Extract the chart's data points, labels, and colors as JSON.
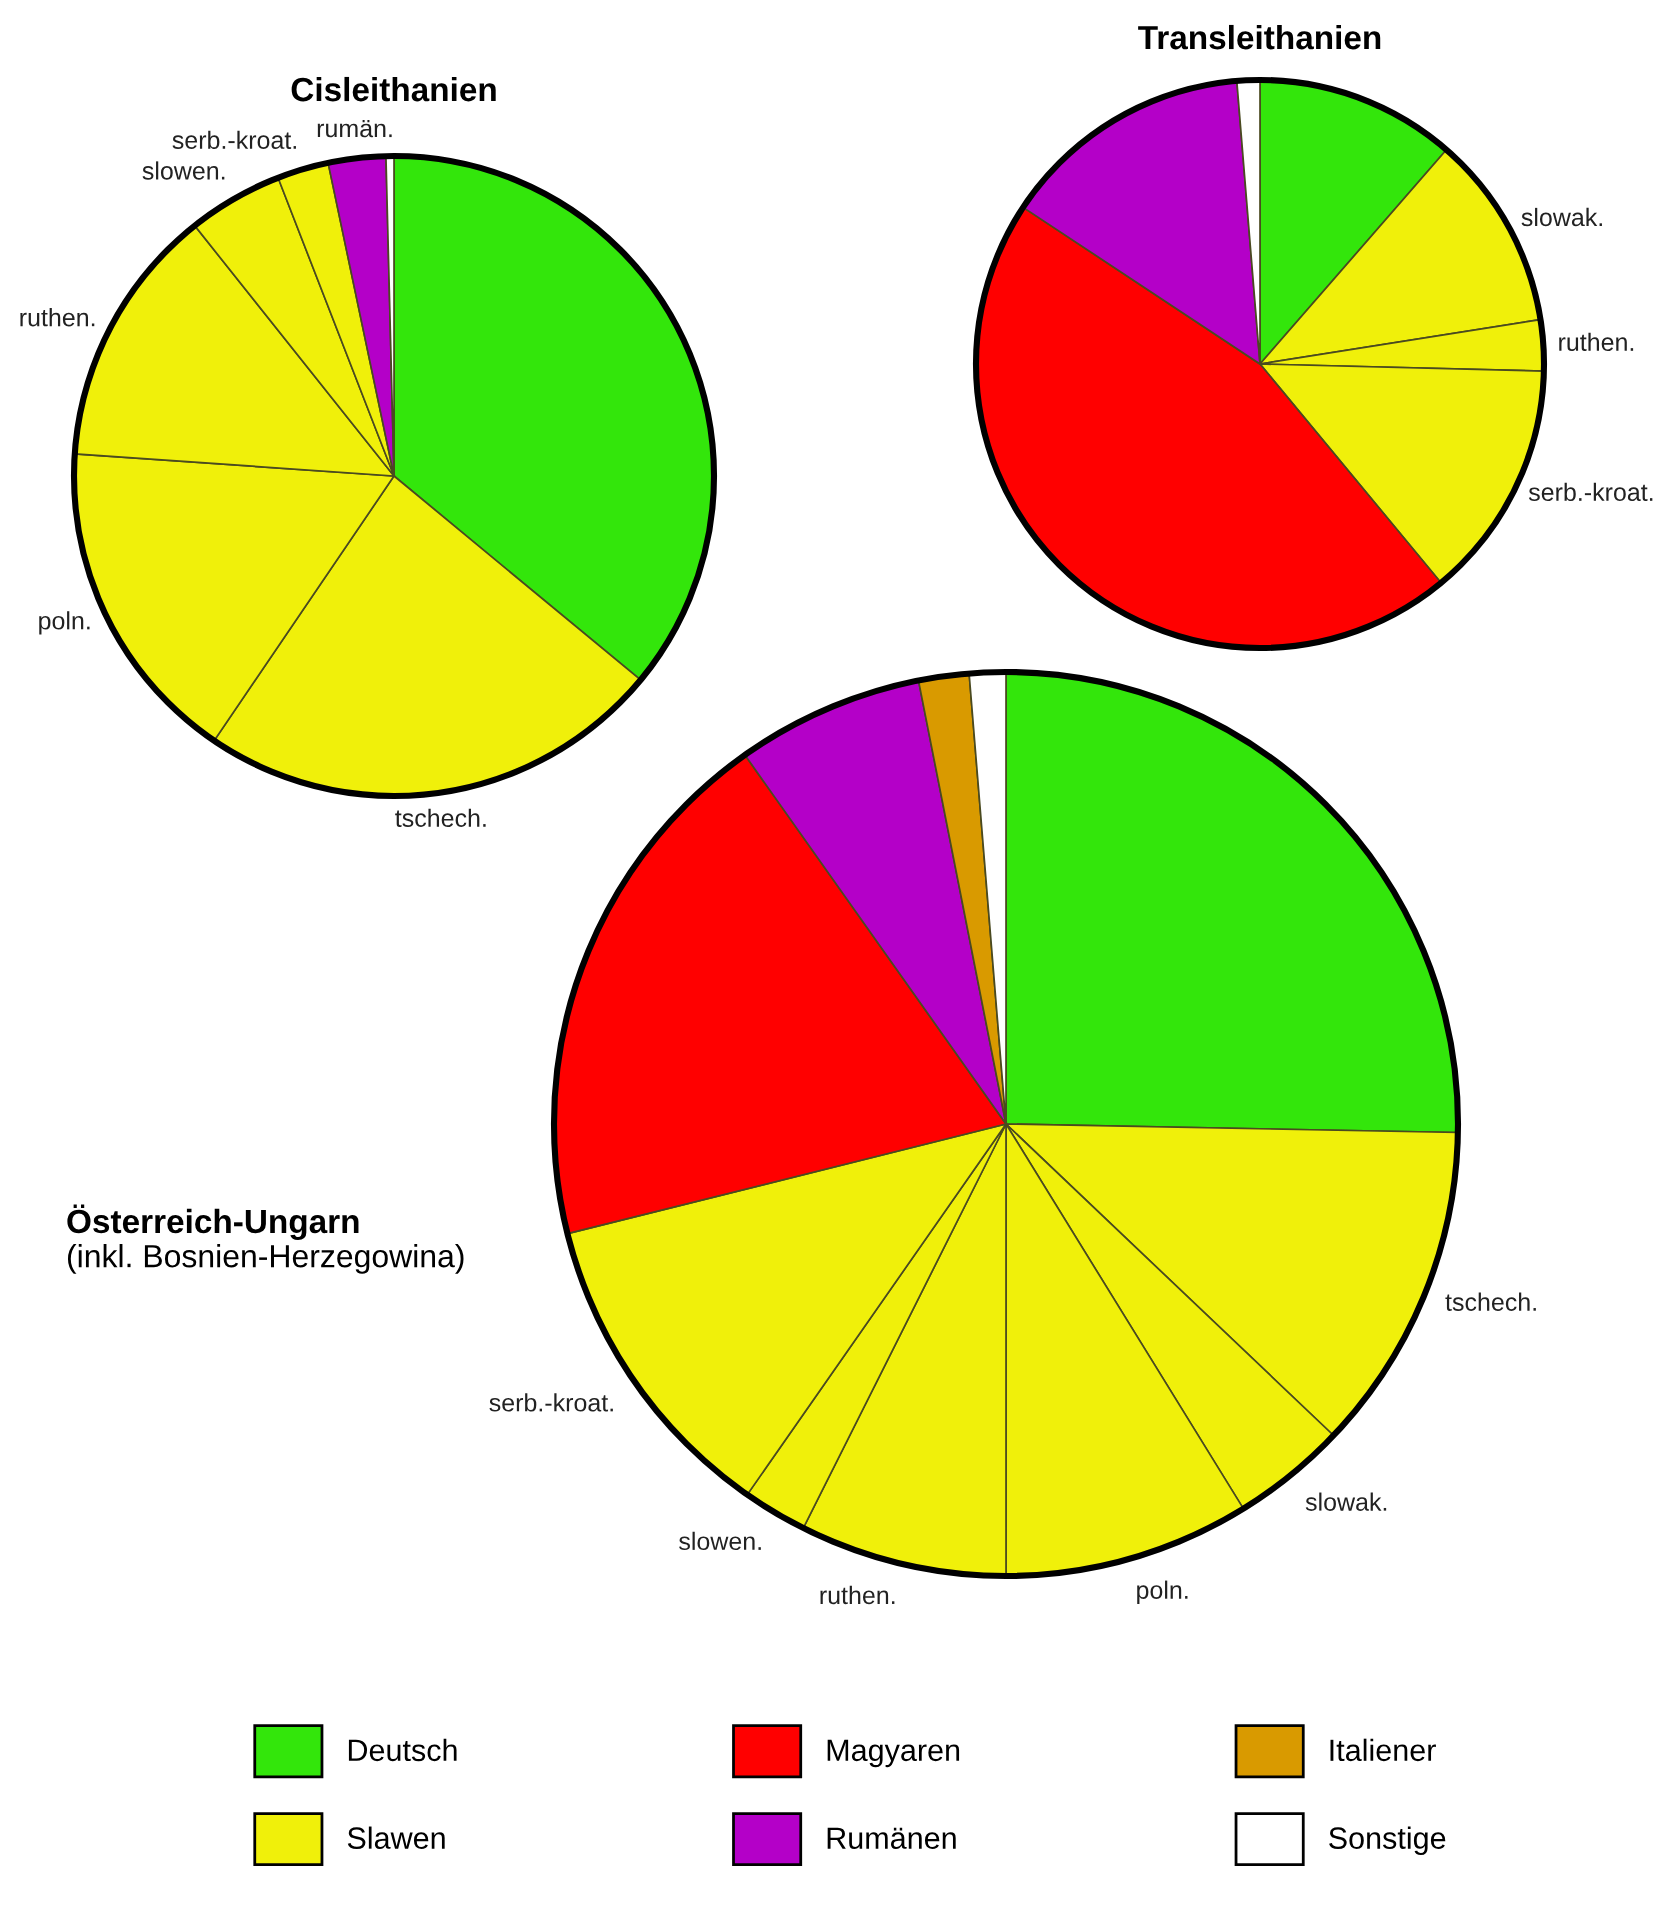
{
  "chart_data": [
    {
      "type": "pie",
      "title": "Cisleithanien",
      "categories": [
        null,
        "tschech.",
        "poln.",
        "ruthen.",
        "slowen.",
        "serb.-kroat.",
        "rumän.",
        null
      ],
      "values": [
        36.0,
        23.5,
        16.6,
        13.2,
        4.8,
        2.6,
        2.9,
        0.4
      ],
      "colors": [
        "#33e60b",
        "#f0f00a",
        "#f0f00a",
        "#f0f00a",
        "#f0f00a",
        "#f0f00a",
        "#b400c8",
        "#ffffff"
      ]
    },
    {
      "type": "pie",
      "title": "Transleithanien",
      "categories": [
        null,
        "slowak.",
        "ruthen.",
        "serb.-kroat.",
        null,
        null,
        null
      ],
      "values": [
        11.4,
        11.1,
        2.9,
        13.6,
        45.3,
        14.4,
        1.3
      ],
      "colors": [
        "#33e60b",
        "#f0f00a",
        "#f0f00a",
        "#f0f00a",
        "#ff0000",
        "#b400c8",
        "#ffffff"
      ]
    },
    {
      "type": "pie",
      "title": "Österreich-Ungarn",
      "subtitle": "(inkl. Bosnien-Herzegowina)",
      "categories": [
        null,
        "tschech.",
        "slowak.",
        "poln.",
        "ruthen.",
        "slowen.",
        "serb.-kroat.",
        null,
        null,
        null,
        null
      ],
      "values": [
        25.3,
        11.8,
        4.1,
        8.8,
        7.4,
        2.3,
        11.4,
        19.1,
        6.7,
        1.8,
        1.3
      ],
      "colors": [
        "#33e60b",
        "#f0f00a",
        "#f0f00a",
        "#f0f00a",
        "#f0f00a",
        "#f0f00a",
        "#f0f00a",
        "#ff0000",
        "#b400c8",
        "#d99a00",
        "#ffffff"
      ]
    },
    {
      "type": "other",
      "categories": [
        "Deutsch",
        "Slawen",
        "Magyaren",
        "Rumänen",
        "Italiener",
        "Sonstige"
      ],
      "colors": [
        "#33e60b",
        "#f0f00a",
        "#ff0000",
        "#b400c8",
        "#d99a00",
        "#ffffff"
      ]
    }
  ]
}
